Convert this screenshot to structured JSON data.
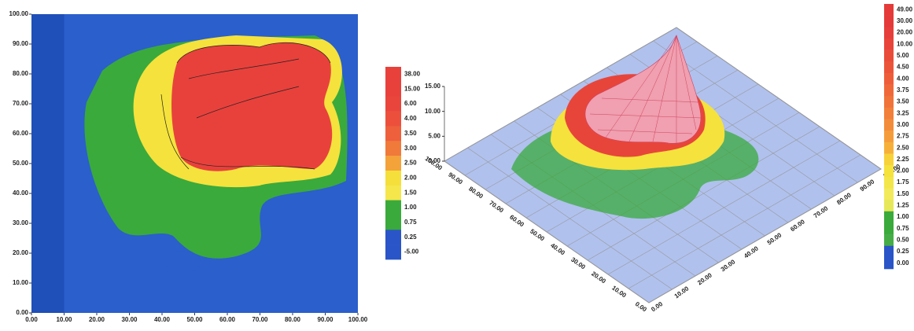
{
  "chart_data": [
    {
      "type": "contour",
      "xlim": [
        0,
        100
      ],
      "ylim": [
        0,
        100
      ],
      "xticks": [
        {
          "value": 0,
          "label": "0.00"
        },
        {
          "value": 10,
          "label": "10.00"
        },
        {
          "value": 20,
          "label": "20.00"
        },
        {
          "value": 30,
          "label": "30.00"
        },
        {
          "value": 40,
          "label": "40.00"
        },
        {
          "value": 50,
          "label": "50.00"
        },
        {
          "value": 60,
          "label": "60.00"
        },
        {
          "value": 70,
          "label": "70.00"
        },
        {
          "value": 80,
          "label": "80.00"
        },
        {
          "value": 90,
          "label": "90.00"
        },
        {
          "value": 100,
          "label": "100.00"
        }
      ],
      "yticks": [
        {
          "value": 0,
          "label": "0.00"
        },
        {
          "value": 10,
          "label": "10.00"
        },
        {
          "value": 20,
          "label": "20.00"
        },
        {
          "value": 30,
          "label": "30.00"
        },
        {
          "value": 40,
          "label": "40.00"
        },
        {
          "value": 50,
          "label": "50.00"
        },
        {
          "value": 60,
          "label": "60.00"
        },
        {
          "value": 70,
          "label": "70.00"
        },
        {
          "value": 80,
          "label": "80.00"
        },
        {
          "value": 90,
          "label": "90.00"
        },
        {
          "value": 100,
          "label": "100.00"
        }
      ],
      "colorbar_ticks": [
        {
          "value": 38,
          "label": "38.00"
        },
        {
          "value": 15,
          "label": "15.00"
        },
        {
          "value": 6,
          "label": "6.00"
        },
        {
          "value": 4,
          "label": "4.00"
        },
        {
          "value": 3.5,
          "label": "3.50"
        },
        {
          "value": 3,
          "label": "3.00"
        },
        {
          "value": 2.5,
          "label": "2.50"
        },
        {
          "value": 2,
          "label": "2.00"
        },
        {
          "value": 1.5,
          "label": "1.50"
        },
        {
          "value": 1,
          "label": "1.00"
        },
        {
          "value": 0.75,
          "label": "0.75"
        },
        {
          "value": 0.25,
          "label": "0.25"
        },
        {
          "value": -5,
          "label": "-5.00"
        }
      ],
      "colorbar_colors": [
        "#e8413c",
        "#e8413c",
        "#e9453c",
        "#ec503c",
        "#ee5f3c",
        "#f07a3a",
        "#f4a23a",
        "#f5df3a",
        "#f5e64c",
        "#3aaa3c",
        "#3aaa3c",
        "#2a55c8",
        "#2a55c8"
      ]
    },
    {
      "type": "surface3d",
      "xlim": [
        0,
        100
      ],
      "ylim": [
        0,
        100
      ],
      "xticks": [
        {
          "value": 0,
          "label": "0.00"
        },
        {
          "value": 10,
          "label": "10.00"
        },
        {
          "value": 20,
          "label": "20.00"
        },
        {
          "value": 30,
          "label": "30.00"
        },
        {
          "value": 40,
          "label": "40.00"
        },
        {
          "value": 50,
          "label": "50.00"
        },
        {
          "value": 60,
          "label": "60.00"
        },
        {
          "value": 70,
          "label": "70.00"
        },
        {
          "value": 80,
          "label": "80.00"
        },
        {
          "value": 90,
          "label": "90.00"
        },
        {
          "value": 100,
          "label": "100.00"
        }
      ],
      "yticks": [
        {
          "value": 0,
          "label": "0.00"
        },
        {
          "value": 10,
          "label": "10.00"
        },
        {
          "value": 20,
          "label": "20.00"
        },
        {
          "value": 30,
          "label": "30.00"
        },
        {
          "value": 40,
          "label": "40.00"
        },
        {
          "value": 50,
          "label": "50.00"
        },
        {
          "value": 60,
          "label": "60.00"
        },
        {
          "value": 70,
          "label": "70.00"
        },
        {
          "value": 80,
          "label": "80.00"
        },
        {
          "value": 90,
          "label": "90.00"
        },
        {
          "value": 100,
          "label": "100.00"
        }
      ],
      "zticks": [
        {
          "value": 15,
          "label": "15.00"
        },
        {
          "value": 10,
          "label": "10.00"
        },
        {
          "value": 5,
          "label": "5.00"
        },
        {
          "value": 0,
          "label": "0.00"
        }
      ],
      "colorbar_ticks": [
        {
          "value": 49,
          "label": "49.00"
        },
        {
          "value": 30,
          "label": "30.00"
        },
        {
          "value": 20,
          "label": "20.00"
        },
        {
          "value": 10,
          "label": "10.00"
        },
        {
          "value": 5,
          "label": "5.00"
        },
        {
          "value": 4.5,
          "label": "4.50"
        },
        {
          "value": 4,
          "label": "4.00"
        },
        {
          "value": 3.75,
          "label": "3.75"
        },
        {
          "value": 3.5,
          "label": "3.50"
        },
        {
          "value": 3.25,
          "label": "3.25"
        },
        {
          "value": 3,
          "label": "3.00"
        },
        {
          "value": 2.75,
          "label": "2.75"
        },
        {
          "value": 2.5,
          "label": "2.50"
        },
        {
          "value": 2.25,
          "label": "2.25"
        },
        {
          "value": 2,
          "label": "2.00"
        },
        {
          "value": 1.75,
          "label": "1.75"
        },
        {
          "value": 1.5,
          "label": "1.50"
        },
        {
          "value": 1.25,
          "label": "1.25"
        },
        {
          "value": 1,
          "label": "1.00"
        },
        {
          "value": 0.75,
          "label": "0.75"
        },
        {
          "value": 0.5,
          "label": "0.50"
        },
        {
          "value": 0.25,
          "label": "0.25"
        },
        {
          "value": 0,
          "label": "0.00"
        }
      ],
      "colorbar_colors": [
        "#e53a3a",
        "#e53a3a",
        "#e63e3a",
        "#e8443a",
        "#ea4c3a",
        "#ec543a",
        "#ee5d3a",
        "#ef683a",
        "#f0733a",
        "#f27f3a",
        "#f38c3a",
        "#f59c3a",
        "#f6b03a",
        "#f7d23a",
        "#f5e23c",
        "#f3e64a",
        "#f2ea5a",
        "#e6e85a",
        "#3aaa3c",
        "#3aaa3c",
        "#46ad46",
        "#2a55c8",
        "#2a55c8"
      ]
    }
  ]
}
